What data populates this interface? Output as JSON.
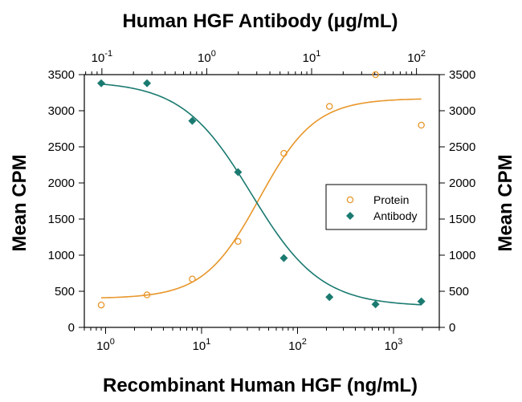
{
  "chart_data": {
    "type": "scatter",
    "title": "",
    "top_xlabel": "Human HGF Antibody (μg/mL)",
    "xlabel": "Recombinant Human HGF (ng/mL)",
    "ylabel_left": "Mean CPM",
    "ylabel_right": "Mean CPM",
    "x_scale": "log",
    "xlim": [
      0.6,
      3000
    ],
    "top_xlim": [
      0.068,
      165
    ],
    "ylim": [
      0,
      3500
    ],
    "y_ticks": [
      0,
      500,
      1000,
      1500,
      2000,
      2500,
      3000,
      3500
    ],
    "x_tick_labels": [
      {
        "value": 1,
        "base": "10",
        "exp": "0"
      },
      {
        "value": 10,
        "base": "10",
        "exp": "1"
      },
      {
        "value": 100,
        "base": "10",
        "exp": "2"
      },
      {
        "value": 1000,
        "base": "10",
        "exp": "3"
      }
    ],
    "top_x_tick_labels": [
      {
        "value": 0.1,
        "base": "10",
        "exp": "-1"
      },
      {
        "value": 1,
        "base": "10",
        "exp": "0"
      },
      {
        "value": 10,
        "base": "10",
        "exp": "1"
      },
      {
        "value": 100,
        "base": "10",
        "exp": "2"
      }
    ],
    "legend": {
      "placement": "right-middle",
      "entries": [
        "Protein",
        "Antibody"
      ]
    },
    "grid": false,
    "series": [
      {
        "name": "Protein",
        "marker": "open-circle",
        "color": "#E8962A",
        "x": [
          0.9,
          2.7,
          8,
          24,
          72,
          215,
          650,
          1950
        ],
        "y": [
          310,
          450,
          670,
          1190,
          2410,
          3060,
          3500,
          2800
        ],
        "fit": {
          "bottom": 400,
          "top": 3170,
          "ec50": 40,
          "hill": 1.5
        }
      },
      {
        "name": "Antibody",
        "marker": "filled-diamond",
        "color": "#1A7A70",
        "x": [
          0.9,
          2.7,
          8,
          24,
          72,
          215,
          650,
          1950
        ],
        "y": [
          3380,
          3380,
          2860,
          2150,
          960,
          420,
          320,
          360
        ],
        "fit": {
          "bottom": 290,
          "top": 3410,
          "ec50": 33,
          "hill": -1.2
        }
      }
    ]
  }
}
